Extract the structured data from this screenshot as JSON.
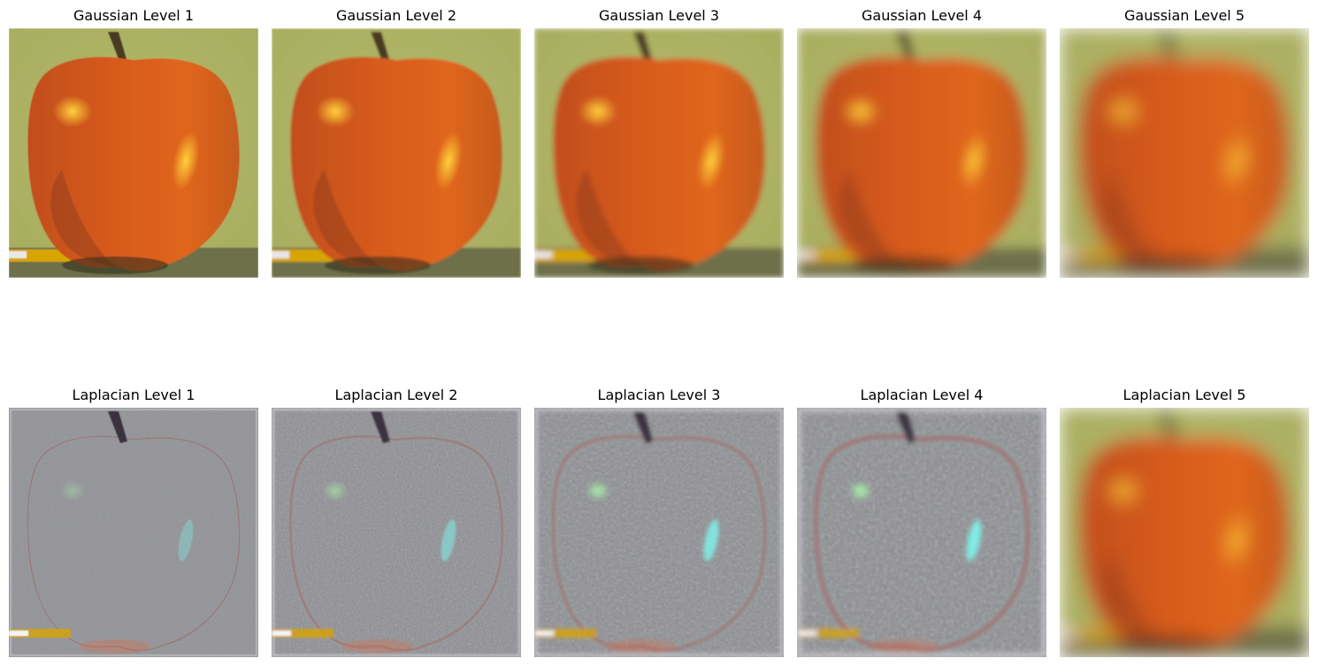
{
  "figure": {
    "gaussian_row": [
      {
        "title": "Gaussian Level 1",
        "level": 1
      },
      {
        "title": "Gaussian Level 2",
        "level": 2
      },
      {
        "title": "Gaussian Level 3",
        "level": 3
      },
      {
        "title": "Gaussian Level 4",
        "level": 4
      },
      {
        "title": "Gaussian Level 5",
        "level": 5
      }
    ],
    "laplacian_row": [
      {
        "title": "Laplacian Level 1",
        "level": 1
      },
      {
        "title": "Laplacian Level 2",
        "level": 2
      },
      {
        "title": "Laplacian Level 3",
        "level": 3
      },
      {
        "title": "Laplacian Level 4",
        "level": 4
      },
      {
        "title": "Laplacian Level 5",
        "level": 5
      }
    ]
  },
  "colors": {
    "gaussian_background": "#a8ad5f",
    "apple_orange": "#e0661c",
    "apple_highlight": "#ffd23a",
    "laplacian_gray": "#8e8f94",
    "laplacian_edge_red": "#b04a5a",
    "laplacian_edge_cyan": "#6fd3c0",
    "pencil_yellow": "#d8a400"
  }
}
